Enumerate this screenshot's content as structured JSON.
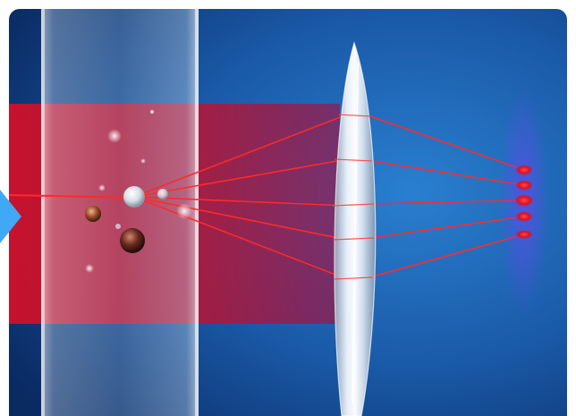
{
  "colors": {
    "background_light": "#1a63b3",
    "background_dark": "#0a2a62",
    "laser_red": "#e0101e",
    "laser_beam": "#c8102e",
    "ray_color": "#ff2a2a",
    "glass_cell": "#c9dbe8",
    "lens_glass": "#e8eef5",
    "accent_arrow": "#3fa9f5",
    "particle_copper": "#a0522d"
  },
  "icons": {
    "pointer": "triangle-arrow-icon"
  },
  "diagram": {
    "focal_spots": 5,
    "scattering_particles": 6,
    "scattered_rays": 6
  }
}
